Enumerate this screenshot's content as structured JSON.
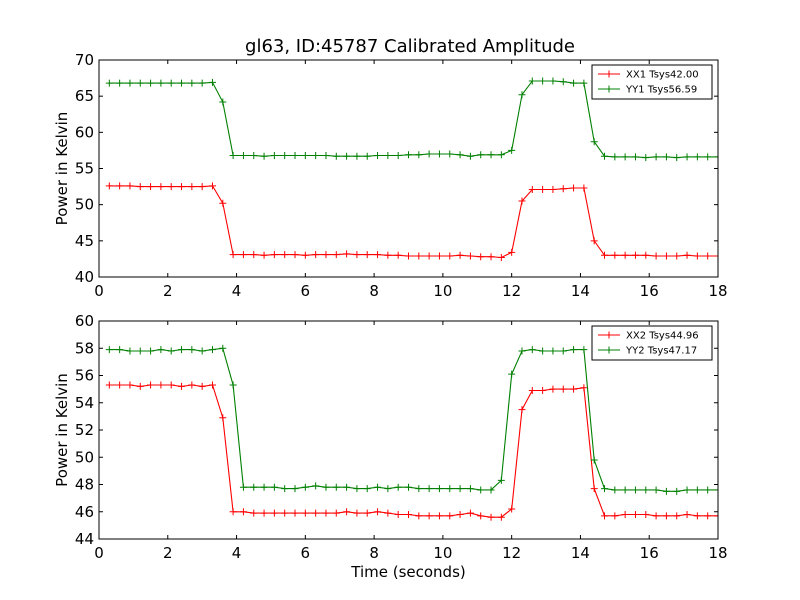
{
  "title": "gl63, ID:45787 Calibrated Amplitude",
  "chart_data": [
    {
      "type": "line",
      "xlabel": "",
      "ylabel": "Power in Kelvin",
      "xlim": [
        0,
        18
      ],
      "ylim": [
        40,
        70
      ],
      "xticks": [
        "0",
        "2",
        "4",
        "6",
        "8",
        "10",
        "12",
        "14",
        "16",
        "18"
      ],
      "yticks": [
        "40",
        "45",
        "50",
        "55",
        "60",
        "65",
        "70"
      ],
      "grid": false,
      "legend_position": "top-right",
      "x": [
        0.3,
        0.6,
        0.9,
        1.2,
        1.5,
        1.8,
        2.1,
        2.4,
        2.7,
        3.0,
        3.3,
        3.6,
        3.9,
        4.2,
        4.5,
        4.8,
        5.1,
        5.4,
        5.7,
        6.0,
        6.3,
        6.6,
        6.9,
        7.2,
        7.5,
        7.8,
        8.1,
        8.4,
        8.7,
        9.0,
        9.3,
        9.6,
        9.9,
        10.2,
        10.5,
        10.8,
        11.1,
        11.4,
        11.7,
        12.0,
        12.3,
        12.6,
        12.9,
        13.2,
        13.5,
        13.8,
        14.1,
        14.4,
        14.7,
        15.0,
        15.3,
        15.6,
        15.9,
        16.2,
        16.5,
        16.8,
        17.1,
        17.4,
        17.7,
        18.0
      ],
      "series": [
        {
          "name": "XX1 Tsys42.00",
          "color": "#ff0000",
          "values": [
            52.6,
            52.6,
            52.6,
            52.5,
            52.5,
            52.5,
            52.5,
            52.5,
            52.5,
            52.5,
            52.6,
            50.2,
            43.1,
            43.1,
            43.1,
            43.0,
            43.1,
            43.1,
            43.1,
            43.0,
            43.1,
            43.1,
            43.1,
            43.2,
            43.1,
            43.1,
            43.1,
            43.0,
            43.0,
            42.9,
            42.9,
            42.9,
            42.9,
            42.9,
            43.0,
            42.9,
            42.8,
            42.8,
            42.7,
            43.4,
            50.5,
            52.1,
            52.1,
            52.1,
            52.2,
            52.3,
            52.3,
            45.0,
            43.0,
            43.0,
            43.0,
            43.0,
            43.0,
            42.9,
            42.9,
            42.9,
            43.0,
            42.9,
            42.9,
            42.9
          ]
        },
        {
          "name": "YY1 Tsys56.59",
          "color": "#008000",
          "values": [
            66.8,
            66.8,
            66.8,
            66.8,
            66.8,
            66.8,
            66.8,
            66.8,
            66.8,
            66.8,
            66.9,
            64.2,
            56.8,
            56.8,
            56.8,
            56.7,
            56.8,
            56.8,
            56.8,
            56.8,
            56.8,
            56.8,
            56.7,
            56.7,
            56.7,
            56.7,
            56.8,
            56.8,
            56.8,
            56.9,
            56.9,
            57.0,
            57.0,
            57.0,
            56.9,
            56.7,
            56.9,
            56.9,
            56.9,
            57.5,
            65.2,
            67.1,
            67.1,
            67.1,
            67.0,
            66.8,
            66.8,
            58.7,
            56.7,
            56.6,
            56.6,
            56.6,
            56.5,
            56.6,
            56.6,
            56.5,
            56.6,
            56.6,
            56.6,
            56.6
          ]
        }
      ]
    },
    {
      "type": "line",
      "xlabel": "Time (seconds)",
      "ylabel": "Power in Kelvin",
      "xlim": [
        0,
        18
      ],
      "ylim": [
        44,
        60
      ],
      "xticks": [
        "0",
        "2",
        "4",
        "6",
        "8",
        "10",
        "12",
        "14",
        "16",
        "18"
      ],
      "yticks": [
        "44",
        "46",
        "48",
        "50",
        "52",
        "54",
        "56",
        "58",
        "60"
      ],
      "grid": false,
      "legend_position": "top-right",
      "x": [
        0.3,
        0.6,
        0.9,
        1.2,
        1.5,
        1.8,
        2.1,
        2.4,
        2.7,
        3.0,
        3.3,
        3.6,
        3.9,
        4.2,
        4.5,
        4.8,
        5.1,
        5.4,
        5.7,
        6.0,
        6.3,
        6.6,
        6.9,
        7.2,
        7.5,
        7.8,
        8.1,
        8.4,
        8.7,
        9.0,
        9.3,
        9.6,
        9.9,
        10.2,
        10.5,
        10.8,
        11.1,
        11.4,
        11.7,
        12.0,
        12.3,
        12.6,
        12.9,
        13.2,
        13.5,
        13.8,
        14.1,
        14.4,
        14.7,
        15.0,
        15.3,
        15.6,
        15.9,
        16.2,
        16.5,
        16.8,
        17.1,
        17.4,
        17.7,
        18.0
      ],
      "series": [
        {
          "name": "XX2 Tsys44.96",
          "color": "#ff0000",
          "values": [
            55.3,
            55.3,
            55.3,
            55.2,
            55.3,
            55.3,
            55.3,
            55.2,
            55.3,
            55.2,
            55.3,
            52.9,
            46.0,
            46.0,
            45.9,
            45.9,
            45.9,
            45.9,
            45.9,
            45.9,
            45.9,
            45.9,
            45.9,
            46.0,
            45.9,
            45.9,
            46.0,
            45.9,
            45.8,
            45.8,
            45.7,
            45.7,
            45.7,
            45.7,
            45.8,
            45.9,
            45.7,
            45.6,
            45.6,
            46.2,
            53.5,
            54.9,
            54.9,
            55.0,
            55.0,
            55.0,
            55.1,
            47.7,
            45.7,
            45.7,
            45.8,
            45.8,
            45.8,
            45.7,
            45.7,
            45.7,
            45.8,
            45.7,
            45.7,
            45.7
          ]
        },
        {
          "name": "YY2 Tsys47.17",
          "color": "#008000",
          "values": [
            57.9,
            57.9,
            57.8,
            57.8,
            57.8,
            57.9,
            57.8,
            57.9,
            57.9,
            57.8,
            57.9,
            58.0,
            55.3,
            47.8,
            47.8,
            47.8,
            47.8,
            47.7,
            47.7,
            47.8,
            47.9,
            47.8,
            47.8,
            47.8,
            47.7,
            47.7,
            47.8,
            47.7,
            47.8,
            47.8,
            47.7,
            47.7,
            47.7,
            47.7,
            47.7,
            47.7,
            47.6,
            47.6,
            48.3,
            56.1,
            57.8,
            57.9,
            57.8,
            57.8,
            57.8,
            57.9,
            57.9,
            49.8,
            47.7,
            47.6,
            47.6,
            47.6,
            47.6,
            47.6,
            47.5,
            47.5,
            47.6,
            47.6,
            47.6,
            47.6
          ]
        }
      ]
    }
  ]
}
